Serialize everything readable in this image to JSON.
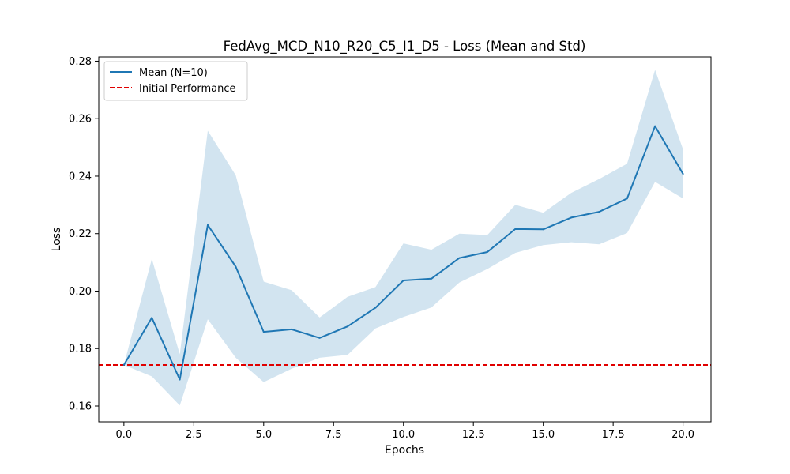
{
  "chart_data": {
    "type": "line",
    "title": "FedAvg_MCD_N10_R20_C5_I1_D5 - Loss (Mean and Std)",
    "xlabel": "Epochs",
    "ylabel": "Loss",
    "xlim": [
      -0.9,
      21.0
    ],
    "ylim": [
      0.1545,
      0.2815
    ],
    "x": [
      0,
      1,
      2,
      3,
      4,
      5,
      6,
      7,
      8,
      9,
      10,
      11,
      12,
      13,
      14,
      15,
      16,
      17,
      18,
      19,
      20
    ],
    "x_ticks": [
      0.0,
      2.5,
      5.0,
      7.5,
      10.0,
      12.5,
      15.0,
      17.5,
      20.0
    ],
    "x_tick_labels": [
      "0.0",
      "2.5",
      "5.0",
      "7.5",
      "10.0",
      "12.5",
      "15.0",
      "17.5",
      "20.0"
    ],
    "y_ticks": [
      0.16,
      0.18,
      0.2,
      0.22,
      0.24,
      0.26,
      0.28
    ],
    "y_tick_labels": [
      "0.16",
      "0.18",
      "0.20",
      "0.22",
      "0.24",
      "0.26",
      "0.28"
    ],
    "series": [
      {
        "name": "Mean (N=10)",
        "color": "#1f77b4",
        "values": [
          0.1743,
          0.1907,
          0.1692,
          0.223,
          0.2085,
          0.1858,
          0.1867,
          0.1837,
          0.1877,
          0.1942,
          0.2037,
          0.2043,
          0.2115,
          0.2136,
          0.2216,
          0.2215,
          0.2256,
          0.2276,
          0.2322,
          0.2574,
          0.2408
        ],
        "upper": [
          0.1743,
          0.2112,
          0.178,
          0.2558,
          0.2403,
          0.2033,
          0.2003,
          0.1908,
          0.198,
          0.2014,
          0.2166,
          0.2144,
          0.22,
          0.2195,
          0.23,
          0.2273,
          0.2342,
          0.239,
          0.2443,
          0.277,
          0.2493
        ],
        "lower": [
          0.1743,
          0.1703,
          0.1602,
          0.1902,
          0.1768,
          0.1683,
          0.173,
          0.1768,
          0.1778,
          0.187,
          0.191,
          0.1943,
          0.203,
          0.2077,
          0.2133,
          0.216,
          0.217,
          0.2163,
          0.2202,
          0.238,
          0.2322
        ],
        "band_color": "#1f77b4",
        "band_opacity": 0.2
      }
    ],
    "reference_line": {
      "name": "Initial Performance",
      "value": 0.1743,
      "color": "#e00000",
      "style": "dashed"
    },
    "legend_placement": "upper-left",
    "grid": false
  }
}
